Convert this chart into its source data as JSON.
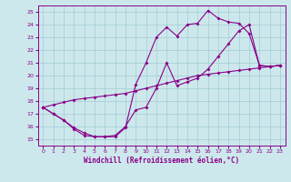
{
  "xlabel": "Windchill (Refroidissement éolien,°C)",
  "xlim": [
    -0.5,
    23.5
  ],
  "ylim": [
    14.5,
    25.5
  ],
  "yticks": [
    15,
    16,
    17,
    18,
    19,
    20,
    21,
    22,
    23,
    24,
    25
  ],
  "xticks": [
    0,
    1,
    2,
    3,
    4,
    5,
    6,
    7,
    8,
    9,
    10,
    11,
    12,
    13,
    14,
    15,
    16,
    17,
    18,
    19,
    20,
    21,
    22,
    23
  ],
  "bg_color": "#cde8ec",
  "grid_color": "#a0ccd4",
  "line_color": "#880088",
  "hours": [
    0,
    1,
    2,
    3,
    4,
    5,
    6,
    7,
    8,
    9,
    10,
    11,
    12,
    13,
    14,
    15,
    16,
    17,
    18,
    19,
    20,
    21,
    22,
    23
  ],
  "curve_zigzag": [
    17.5,
    17.0,
    16.5,
    15.8,
    15.3,
    15.2,
    15.2,
    15.2,
    15.9,
    19.3,
    21.0,
    23.0,
    23.8,
    23.1,
    24.0,
    24.1,
    25.1,
    24.5,
    24.2,
    24.1,
    23.3,
    20.8,
    20.7,
    20.8
  ],
  "curve_low": [
    17.5,
    17.0,
    16.5,
    15.9,
    15.5,
    15.2,
    15.2,
    15.3,
    16.0,
    17.3,
    17.5,
    19.0,
    21.0,
    19.2,
    19.5,
    19.8,
    20.5,
    21.5,
    22.5,
    23.5,
    24.0,
    20.8,
    20.7,
    20.8
  ],
  "curve_straight": [
    17.5,
    17.7,
    17.9,
    18.1,
    18.2,
    18.3,
    18.4,
    18.5,
    18.6,
    18.8,
    19.0,
    19.2,
    19.4,
    19.6,
    19.8,
    20.0,
    20.1,
    20.2,
    20.3,
    20.4,
    20.5,
    20.6,
    20.7,
    20.8
  ]
}
